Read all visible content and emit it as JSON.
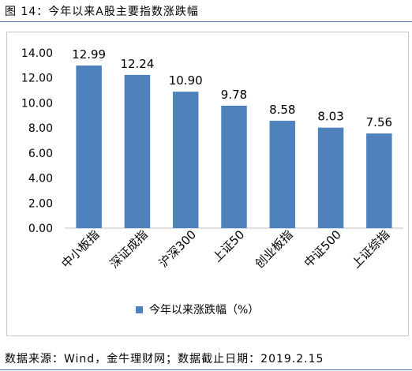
{
  "figure": {
    "title": "图 14：今年以来A股主要指数涨跌幅",
    "source": "数据来源：Wind，金牛理财网；数据截止日期：2019.2.15"
  },
  "chart_data": {
    "type": "bar",
    "categories": [
      "中小板指",
      "深证成指",
      "沪深300",
      "上证50",
      "创业板指",
      "中证500",
      "上证综指"
    ],
    "series": [
      {
        "name": "今年以来涨跌幅（%）",
        "values": [
          12.99,
          12.24,
          10.9,
          9.78,
          8.58,
          8.03,
          7.56
        ]
      }
    ],
    "value_labels": [
      "12.99",
      "12.24",
      "10.90",
      "9.78",
      "8.58",
      "8.03",
      "7.56"
    ],
    "y_ticks": [
      "0.00",
      "2.00",
      "4.00",
      "6.00",
      "8.00",
      "10.00",
      "12.00",
      "14.00"
    ],
    "ylim": [
      0,
      14
    ],
    "grid": false,
    "legend_position": "bottom-center",
    "bar_color": "#4f81bd"
  }
}
